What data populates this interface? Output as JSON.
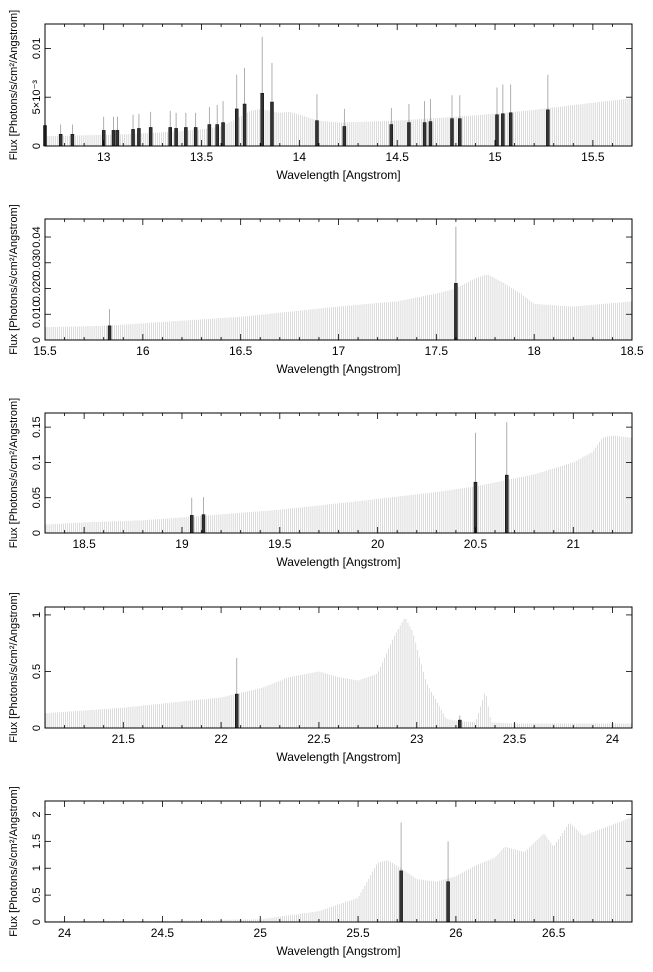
{
  "chart_data": [
    {
      "type": "line",
      "xlabel": "Wavelength [Angstrom]",
      "ylabel": "Flux [Photons/s/cm²/Angstrom]",
      "xlim": [
        12.7,
        15.7
      ],
      "ylim": [
        0,
        0.0125
      ],
      "xticks": [
        13,
        13.5,
        14,
        14.5,
        15,
        15.5
      ],
      "xtick_labels": [
        "13",
        "13.5",
        "14",
        "14.5",
        "15",
        "15.5"
      ],
      "yticks": [
        0,
        0.005,
        0.01
      ],
      "ytick_labels": [
        "0",
        "5×10⁻³",
        "0.01"
      ],
      "grid": false,
      "series": [
        {
          "x": [
            12.7,
            12.9,
            13.1,
            13.3,
            13.5,
            13.6,
            13.7,
            13.75,
            13.8,
            13.85,
            13.9,
            13.95,
            14.0,
            14.1,
            14.2,
            14.5,
            14.8,
            15.0,
            15.2,
            15.4,
            15.7
          ],
          "values": [
            0.001,
            0.0011,
            0.0012,
            0.0014,
            0.0017,
            0.002,
            0.003,
            0.0036,
            0.0038,
            0.0036,
            0.0034,
            0.0035,
            0.0032,
            0.0026,
            0.0024,
            0.0026,
            0.003,
            0.0033,
            0.0037,
            0.0042,
            0.0049
          ]
        }
      ],
      "lines": [
        {
          "x": 12.7,
          "y": 0.0021,
          "err": 0.0006
        },
        {
          "x": 12.78,
          "y": 0.0012,
          "err": 0.001
        },
        {
          "x": 12.84,
          "y": 0.0012,
          "err": 0.001
        },
        {
          "x": 13.0,
          "y": 0.0016,
          "err": 0.0014
        },
        {
          "x": 13.05,
          "y": 0.0016,
          "err": 0.0014
        },
        {
          "x": 13.07,
          "y": 0.0016,
          "err": 0.0014
        },
        {
          "x": 13.15,
          "y": 0.0017,
          "err": 0.0015
        },
        {
          "x": 13.18,
          "y": 0.0018,
          "err": 0.0015
        },
        {
          "x": 13.24,
          "y": 0.0019,
          "err": 0.0016
        },
        {
          "x": 13.34,
          "y": 0.0019,
          "err": 0.0017
        },
        {
          "x": 13.37,
          "y": 0.0018,
          "err": 0.0016
        },
        {
          "x": 13.42,
          "y": 0.0019,
          "err": 0.0015
        },
        {
          "x": 13.47,
          "y": 0.0019,
          "err": 0.0015
        },
        {
          "x": 13.54,
          "y": 0.0022,
          "err": 0.0018
        },
        {
          "x": 13.58,
          "y": 0.0022,
          "err": 0.002
        },
        {
          "x": 13.61,
          "y": 0.0024,
          "err": 0.0022
        },
        {
          "x": 13.68,
          "y": 0.0038,
          "err": 0.0035
        },
        {
          "x": 13.72,
          "y": 0.0043,
          "err": 0.0037
        },
        {
          "x": 13.81,
          "y": 0.0054,
          "err": 0.0058
        },
        {
          "x": 13.86,
          "y": 0.0045,
          "err": 0.004
        },
        {
          "x": 14.09,
          "y": 0.0026,
          "err": 0.0027
        },
        {
          "x": 14.23,
          "y": 0.002,
          "err": 0.0018
        },
        {
          "x": 14.47,
          "y": 0.0022,
          "err": 0.0017
        },
        {
          "x": 14.56,
          "y": 0.0024,
          "err": 0.0019
        },
        {
          "x": 14.64,
          "y": 0.0024,
          "err": 0.0022
        },
        {
          "x": 14.67,
          "y": 0.0025,
          "err": 0.0023
        },
        {
          "x": 14.78,
          "y": 0.0028,
          "err": 0.0024
        },
        {
          "x": 14.82,
          "y": 0.0028,
          "err": 0.0024
        },
        {
          "x": 15.01,
          "y": 0.0032,
          "err": 0.0028
        },
        {
          "x": 15.04,
          "y": 0.0033,
          "err": 0.003
        },
        {
          "x": 15.08,
          "y": 0.0034,
          "err": 0.0029
        },
        {
          "x": 15.27,
          "y": 0.0037,
          "err": 0.0036
        }
      ]
    },
    {
      "type": "line",
      "xlabel": "Wavelength [Angstrom]",
      "ylabel": "Flux [Photons/s/cm²/Angstrom]",
      "xlim": [
        15.5,
        18.5
      ],
      "ylim": [
        0,
        0.047
      ],
      "xticks": [
        15.5,
        16,
        16.5,
        17,
        17.5,
        18,
        18.5
      ],
      "xtick_labels": [
        "15.5",
        "16",
        "16.5",
        "17",
        "17.5",
        "18",
        "18.5"
      ],
      "yticks": [
        0,
        0.01,
        0.02,
        0.03,
        0.04
      ],
      "ytick_labels": [
        "0",
        "0.010",
        "0.020",
        "0.030",
        "0.04"
      ],
      "grid": false,
      "series": [
        {
          "x": [
            15.5,
            15.8,
            16.0,
            16.5,
            17.0,
            17.3,
            17.5,
            17.6,
            17.7,
            17.76,
            17.85,
            17.95,
            18.0,
            18.2,
            18.5
          ],
          "values": [
            0.005,
            0.0055,
            0.0065,
            0.009,
            0.013,
            0.015,
            0.018,
            0.02,
            0.024,
            0.0255,
            0.022,
            0.017,
            0.014,
            0.013,
            0.015
          ]
        }
      ],
      "lines": [
        {
          "x": 15.83,
          "y": 0.0055,
          "err": 0.0065
        },
        {
          "x": 17.6,
          "y": 0.022,
          "err": 0.022
        }
      ]
    },
    {
      "type": "line",
      "xlabel": "Wavelength [Angstrom]",
      "ylabel": "Flux [Photons/s/cm²/Angstrom]",
      "xlim": [
        18.3,
        21.3
      ],
      "ylim": [
        0,
        0.17
      ],
      "xticks": [
        18.5,
        19,
        19.5,
        20,
        20.5,
        21
      ],
      "xtick_labels": [
        "18.5",
        "19",
        "19.5",
        "20",
        "20.5",
        "21"
      ],
      "yticks": [
        0,
        0.05,
        0.1,
        0.15
      ],
      "ytick_labels": [
        "0",
        "0.05",
        "0.1",
        "0.15"
      ],
      "grid": false,
      "series": [
        {
          "x": [
            18.3,
            18.5,
            18.8,
            19.0,
            19.5,
            19.9,
            20.3,
            20.5,
            20.8,
            21.0,
            21.1,
            21.15,
            21.2,
            21.3
          ],
          "values": [
            0.012,
            0.015,
            0.018,
            0.022,
            0.033,
            0.045,
            0.058,
            0.066,
            0.083,
            0.1,
            0.115,
            0.135,
            0.138,
            0.135
          ]
        }
      ],
      "lines": [
        {
          "x": 19.05,
          "y": 0.025,
          "err": 0.025
        },
        {
          "x": 19.11,
          "y": 0.026,
          "err": 0.025
        },
        {
          "x": 20.5,
          "y": 0.072,
          "err": 0.07
        },
        {
          "x": 20.66,
          "y": 0.082,
          "err": 0.075
        }
      ]
    },
    {
      "type": "line",
      "xlabel": "Wavelength [Angstrom]",
      "ylabel": "Flux [Photons/s/cm²/Angstrom]",
      "xlim": [
        21.1,
        24.1
      ],
      "ylim": [
        0,
        1.07
      ],
      "xticks": [
        21.5,
        22,
        22.5,
        23,
        23.5,
        24
      ],
      "xtick_labels": [
        "21.5",
        "22",
        "22.5",
        "23",
        "23.5",
        "24"
      ],
      "yticks": [
        0,
        0.5,
        1
      ],
      "ytick_labels": [
        "0",
        "0.5",
        "1"
      ],
      "grid": false,
      "series": [
        {
          "x": [
            21.1,
            21.5,
            22.0,
            22.2,
            22.35,
            22.5,
            22.6,
            22.7,
            22.8,
            22.88,
            22.94,
            22.98,
            23.05,
            23.15,
            23.22,
            23.3,
            23.35,
            23.38,
            23.5,
            24.1
          ],
          "values": [
            0.13,
            0.18,
            0.27,
            0.35,
            0.45,
            0.5,
            0.45,
            0.42,
            0.48,
            0.8,
            0.98,
            0.85,
            0.4,
            0.08,
            0.06,
            0.05,
            0.33,
            0.05,
            0.04,
            0.04
          ]
        }
      ],
      "lines": [
        {
          "x": 22.08,
          "y": 0.3,
          "err": 0.32
        },
        {
          "x": 23.22,
          "y": 0.07,
          "err": 0.04
        }
      ]
    },
    {
      "type": "line",
      "xlabel": "Wavelength [Angstrom]",
      "ylabel": "Flux [Photons/s/cm²/Angstrom]",
      "xlim": [
        23.9,
        26.9
      ],
      "ylim": [
        0,
        2.25
      ],
      "xticks": [
        24,
        24.5,
        25,
        25.5,
        26,
        26.5
      ],
      "xtick_labels": [
        "24",
        "24.5",
        "25",
        "25.5",
        "26",
        "26.5"
      ],
      "yticks": [
        0,
        0.5,
        1,
        1.5,
        2
      ],
      "ytick_labels": [
        "0",
        "0.5",
        "1",
        "1.5",
        "2"
      ],
      "grid": false,
      "series": [
        {
          "x": [
            23.9,
            24.5,
            25.0,
            25.3,
            25.5,
            25.6,
            25.65,
            25.72,
            25.8,
            25.9,
            26.0,
            26.1,
            26.2,
            26.25,
            26.35,
            26.45,
            26.5,
            26.58,
            26.65,
            26.9
          ],
          "values": [
            0.02,
            0.02,
            0.05,
            0.2,
            0.45,
            1.1,
            1.15,
            1.0,
            0.8,
            0.75,
            0.85,
            1.05,
            1.2,
            1.4,
            1.3,
            1.65,
            1.4,
            1.85,
            1.6,
            1.95
          ]
        }
      ],
      "lines": [
        {
          "x": 25.72,
          "y": 0.95,
          "err": 0.9
        },
        {
          "x": 25.96,
          "y": 0.75,
          "err": 0.75
        }
      ]
    }
  ]
}
